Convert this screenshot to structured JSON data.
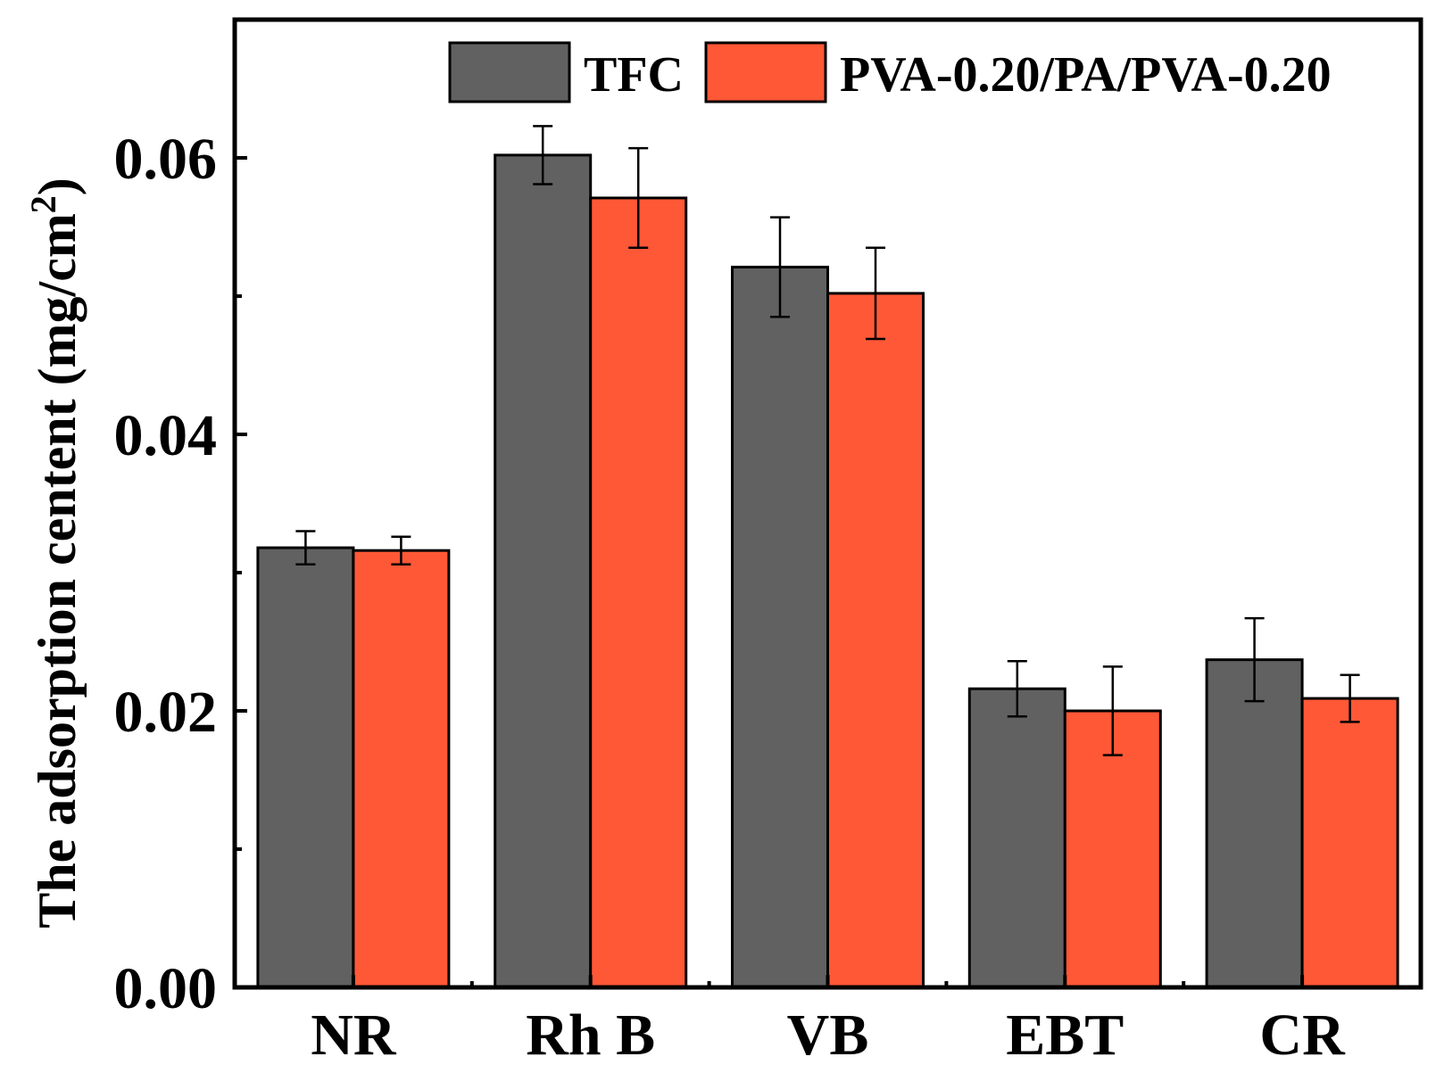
{
  "chart_data": {
    "type": "bar",
    "title": "",
    "xlabel": "",
    "ylabel_main": "The adsorption centent (mg/cm",
    "ylabel_sup": "2",
    "ylabel_close": ")",
    "ylim": [
      0,
      0.07
    ],
    "yticks": [
      {
        "value": 0.0,
        "label": "0.00"
      },
      {
        "value": 0.02,
        "label": "0.02"
      },
      {
        "value": 0.04,
        "label": "0.04"
      },
      {
        "value": 0.06,
        "label": "0.06"
      }
    ],
    "minor_yticks": [
      0.01,
      0.03,
      0.05
    ],
    "categories": [
      "NR",
      "Rh B",
      "VB",
      "EBT",
      "CR"
    ],
    "series": [
      {
        "name": "TFC",
        "color": "#616161",
        "values": [
          0.0318,
          0.0602,
          0.0521,
          0.0216,
          0.0237
        ],
        "errors": [
          0.0012,
          0.0021,
          0.0036,
          0.002,
          0.003
        ]
      },
      {
        "name": "PVA-0.20/PA/PVA-0.20",
        "color": "#ff5837",
        "values": [
          0.0316,
          0.0571,
          0.0502,
          0.02,
          0.0209
        ],
        "errors": [
          0.001,
          0.0036,
          0.0033,
          0.0032,
          0.0017
        ]
      }
    ],
    "legend_position": "top-right"
  }
}
